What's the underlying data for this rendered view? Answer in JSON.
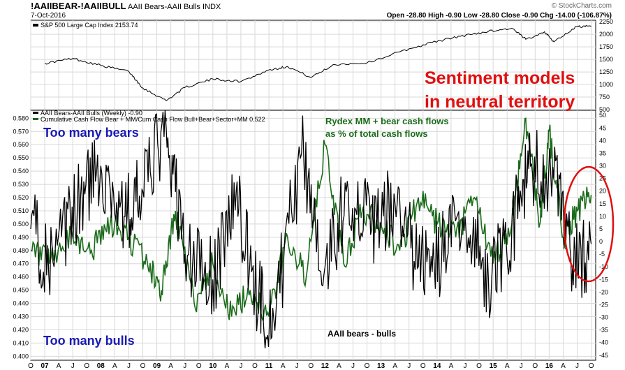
{
  "header": {
    "symbol": "!AAIIBEAR-!AAIIBULL",
    "name": "AAII Bears-AAII Bulls INDX",
    "date": "7-Oct-2016",
    "ohlc": "Open -28.80  High -0.90  Low -28.80  Close -0.90  Chg -14.00 (-106.87%)",
    "watermark": "© StockCharts.com"
  },
  "colors": {
    "spx": "#000000",
    "aaii": "#000000",
    "rydex": "#1a6b1a",
    "annotation_red": "#e01010",
    "annotation_blue": "#1a1ab4",
    "annotation_green": "#1a6b1a",
    "grid": "#d8d8d8"
  },
  "annotations": {
    "title_line1": "Sentiment models",
    "title_line2": "in neutral territory",
    "too_many_bears": "Too many bears",
    "too_many_bulls": "Too many bulls",
    "rydex_line1": "Rydex MM + bear cash flows",
    "rydex_line2": "as % of total cash flows",
    "aaii_label": "AAII bears - bulls"
  },
  "chart_data": [
    {
      "type": "line",
      "panel": "upper",
      "series": [
        {
          "name": "S&P 500 Large Cap Index 2153.74",
          "x": [
            "2007-01",
            "2007-07",
            "2008-01",
            "2008-07",
            "2008-10",
            "2009-03",
            "2009-07",
            "2010-01",
            "2010-07",
            "2011-01",
            "2011-05",
            "2011-10",
            "2012-03",
            "2012-10",
            "2013-05",
            "2013-12",
            "2014-06",
            "2014-12",
            "2015-05",
            "2015-08",
            "2015-12",
            "2016-02",
            "2016-07",
            "2016-10"
          ],
          "values": [
            1420,
            1520,
            1380,
            1260,
            930,
            680,
            940,
            1110,
            1060,
            1290,
            1360,
            1140,
            1400,
            1430,
            1650,
            1840,
            1960,
            2060,
            2120,
            1900,
            2050,
            1850,
            2160,
            2153
          ]
        }
      ],
      "y_ticks": [
        500,
        750,
        1000,
        1250,
        1500,
        1750,
        2000,
        2250
      ],
      "ylim": [
        500,
        2280
      ]
    },
    {
      "type": "line",
      "panel": "lower",
      "legend": {
        "series1": "AAII Bears-AAII Bulls (Weekly) -0.90",
        "series2": "Cumulative Cash Flow Bear + MM/Cum Cash Flow Bull+Bear+Sector+MM 0.522"
      },
      "left_axis": {
        "ticks": [
          "0.580",
          "0.570",
          "0.560",
          "0.550",
          "0.540",
          "0.530",
          "0.520",
          "0.510",
          "0.500",
          "0.490",
          "0.480",
          "0.470",
          "0.460",
          "0.450",
          "0.440",
          "0.430",
          "0.420",
          "0.410",
          "0.400"
        ],
        "ylim": [
          0.397,
          0.586
        ]
      },
      "right_axis": {
        "ticks": [
          "50",
          "45",
          "40",
          "35",
          "30",
          "25",
          "20",
          "15",
          "10",
          "5",
          "0",
          "-5",
          "-10",
          "-15",
          "-20",
          "-25",
          "-30",
          "-35",
          "-40",
          "-45"
        ],
        "ylim": [
          -47,
          52
        ]
      },
      "x_axis_ticks": [
        "O",
        "07",
        "A",
        "J",
        "O",
        "08",
        "A",
        "J",
        "O",
        "09",
        "A",
        "J",
        "O",
        "10",
        "A",
        "J",
        "O",
        "11",
        "A",
        "J",
        "O",
        "12",
        "A",
        "J",
        "O",
        "13",
        "A",
        "J",
        "O",
        "14",
        "A",
        "J",
        "O",
        "15",
        "A",
        "J",
        "O",
        "16",
        "A",
        "J",
        "O"
      ],
      "series": [
        {
          "name": "Rydex MM + bear cash flows",
          "axis": "left",
          "x": [
            "2006-10",
            "2007-02",
            "2007-07",
            "2007-11",
            "2008-03",
            "2008-07",
            "2008-11",
            "2009-02",
            "2009-05",
            "2009-09",
            "2010-01",
            "2010-05",
            "2010-09",
            "2011-01",
            "2011-05",
            "2011-09",
            "2012-01",
            "2012-05",
            "2012-09",
            "2013-01",
            "2013-05",
            "2013-09",
            "2014-01",
            "2014-05",
            "2014-09",
            "2015-01",
            "2015-05",
            "2015-08",
            "2015-11",
            "2016-01",
            "2016-04",
            "2016-07",
            "2016-10"
          ],
          "values": [
            0.48,
            0.47,
            0.49,
            0.48,
            0.5,
            0.49,
            0.47,
            0.45,
            0.51,
            0.44,
            0.47,
            0.43,
            0.45,
            0.43,
            0.49,
            0.46,
            0.56,
            0.47,
            0.51,
            0.5,
            0.48,
            0.52,
            0.5,
            0.49,
            0.52,
            0.47,
            0.5,
            0.58,
            0.5,
            0.57,
            0.49,
            0.51,
            0.522
          ]
        },
        {
          "name": "AAII bears - bulls",
          "axis": "right",
          "x": [
            "2006-10",
            "2007-03",
            "2007-08",
            "2008-01",
            "2008-06",
            "2008-10",
            "2009-03",
            "2009-07",
            "2010-01",
            "2010-06",
            "2010-10",
            "2011-02",
            "2011-08",
            "2012-01",
            "2012-06",
            "2012-11",
            "2013-04",
            "2013-09",
            "2014-02",
            "2014-07",
            "2014-12",
            "2015-05",
            "2015-09",
            "2016-02",
            "2016-06",
            "2016-10"
          ],
          "values": [
            5,
            -10,
            15,
            30,
            10,
            20,
            45,
            -5,
            -15,
            20,
            -20,
            -30,
            35,
            -10,
            20,
            5,
            15,
            -10,
            -5,
            10,
            -15,
            5,
            30,
            25,
            -10,
            -0.9
          ]
        }
      ]
    }
  ]
}
